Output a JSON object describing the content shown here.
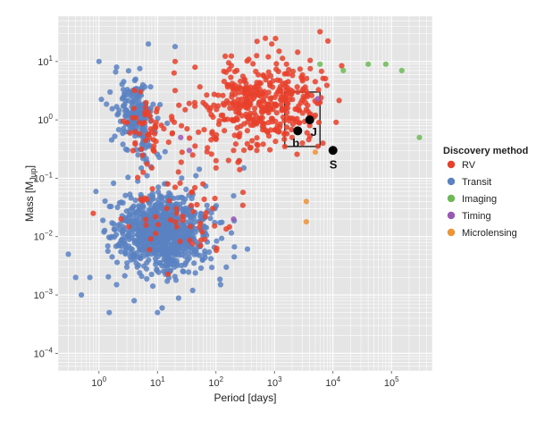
{
  "chart_data": {
    "type": "scatter",
    "xlabel": "Period [days]",
    "ylabel_main": "Mass [M",
    "ylabel_sub": "Jup",
    "ylabel_end": "]",
    "x_scale": "log",
    "y_scale": "log",
    "xlim": [
      0.2,
      500000
    ],
    "ylim": [
      5e-05,
      60
    ],
    "grid": true,
    "x_ticks": [
      {
        "value": 1,
        "base": "10",
        "exp": "0"
      },
      {
        "value": 10,
        "base": "10",
        "exp": "1"
      },
      {
        "value": 100,
        "base": "10",
        "exp": "2"
      },
      {
        "value": 1000,
        "base": "10",
        "exp": "3"
      },
      {
        "value": 10000,
        "base": "10",
        "exp": "4"
      },
      {
        "value": 100000,
        "base": "10",
        "exp": "5"
      }
    ],
    "y_ticks": [
      {
        "value": 0.0001,
        "base": "10",
        "exp": "−4"
      },
      {
        "value": 0.001,
        "base": "10",
        "exp": "−3"
      },
      {
        "value": 0.01,
        "base": "10",
        "exp": "−2"
      },
      {
        "value": 0.1,
        "base": "10",
        "exp": "−1"
      },
      {
        "value": 1,
        "base": "10",
        "exp": "0"
      },
      {
        "value": 10,
        "base": "10",
        "exp": "1"
      }
    ],
    "legend": {
      "title": "Discovery method",
      "placement": "right",
      "entries": [
        {
          "name": "RV",
          "color": "#e8412b"
        },
        {
          "name": "Transit",
          "color": "#5b82c2"
        },
        {
          "name": "Imaging",
          "color": "#6cba56"
        },
        {
          "name": "Timing",
          "color": "#9b59b6"
        },
        {
          "name": "Microlensing",
          "color": "#ef9337"
        }
      ]
    },
    "series": [
      {
        "name": "RV",
        "color": "#e8412b",
        "clusters": [
          {
            "cx": 700,
            "cy": 2.0,
            "sx": 0.45,
            "sy": 0.35,
            "n": 340,
            "seed": 11
          },
          {
            "cx": 150,
            "cy": 1.0,
            "sx": 0.45,
            "sy": 0.35,
            "n": 70,
            "seed": 12
          },
          {
            "cx": 6,
            "cy": 0.7,
            "sx": 0.25,
            "sy": 0.3,
            "n": 55,
            "seed": 13
          },
          {
            "cx": 30,
            "cy": 0.02,
            "sx": 0.45,
            "sy": 0.35,
            "n": 55,
            "seed": 14
          }
        ],
        "points": [
          {
            "x": 2500,
            "y": 3.0
          },
          {
            "x": 3500,
            "y": 1.5
          },
          {
            "x": 4000,
            "y": 0.8
          },
          {
            "x": 2000,
            "y": 0.5
          },
          {
            "x": 5000,
            "y": 1.2
          },
          {
            "x": 6000,
            "y": 2.0
          },
          {
            "x": 3000,
            "y": 5.0
          },
          {
            "x": 100,
            "y": 0.2
          },
          {
            "x": 200,
            "y": 0.3
          },
          {
            "x": 500,
            "y": 0.3
          },
          {
            "x": 1500,
            "y": 0.35
          },
          {
            "x": 3000,
            "y": 0.4
          },
          {
            "x": 15,
            "y": 0.08
          },
          {
            "x": 20,
            "y": 0.07
          },
          {
            "x": 0.8,
            "y": 0.025
          },
          {
            "x": 60,
            "y": 0.08
          },
          {
            "x": 20,
            "y": 10
          },
          {
            "x": 1200,
            "y": 15
          },
          {
            "x": 900,
            "y": 20
          },
          {
            "x": 700,
            "y": 25
          },
          {
            "x": 100,
            "y": 0.15
          },
          {
            "x": 250,
            "y": 0.2
          },
          {
            "x": 40,
            "y": 0.25
          },
          {
            "x": 8,
            "y": 0.15
          }
        ]
      },
      {
        "name": "Transit",
        "color": "#5b82c2",
        "clusters": [
          {
            "cx": 12,
            "cy": 0.012,
            "sx": 0.4,
            "sy": 0.33,
            "n": 900,
            "seed": 21
          },
          {
            "cx": 4,
            "cy": 1.5,
            "sx": 0.18,
            "sy": 0.25,
            "n": 170,
            "seed": 22
          },
          {
            "cx": 5,
            "cy": 0.3,
            "sx": 0.15,
            "sy": 0.2,
            "n": 25,
            "seed": 23
          }
        ],
        "points": [
          {
            "x": 1,
            "y": 10
          },
          {
            "x": 2,
            "y": 8
          },
          {
            "x": 7,
            "y": 20
          },
          {
            "x": 20,
            "y": 18
          },
          {
            "x": 0.3,
            "y": 0.005
          },
          {
            "x": 0.5,
            "y": 0.001
          },
          {
            "x": 1.5,
            "y": 0.0005
          },
          {
            "x": 0.7,
            "y": 0.002
          },
          {
            "x": 10,
            "y": 0.0005
          },
          {
            "x": 4,
            "y": 0.0008
          },
          {
            "x": 2,
            "y": 0.0015
          },
          {
            "x": 40,
            "y": 0.0012
          },
          {
            "x": 120,
            "y": 0.0015
          },
          {
            "x": 150,
            "y": 0.003
          },
          {
            "x": 200,
            "y": 0.05
          },
          {
            "x": 300,
            "y": 0.15
          },
          {
            "x": 250,
            "y": 0.2
          },
          {
            "x": 0.4,
            "y": 0.002
          },
          {
            "x": 12,
            "y": 0.0006
          },
          {
            "x": 3,
            "y": 0.003
          }
        ]
      },
      {
        "name": "Imaging",
        "color": "#6cba56",
        "points": [
          {
            "x": 6000,
            "y": 9
          },
          {
            "x": 15000,
            "y": 7
          },
          {
            "x": 40000,
            "y": 9
          },
          {
            "x": 80000,
            "y": 9
          },
          {
            "x": 150000,
            "y": 7
          },
          {
            "x": 300000,
            "y": 0.5
          }
        ]
      },
      {
        "name": "Timing",
        "color": "#9b59b6",
        "points": [
          {
            "x": 5500,
            "y": 2.3
          },
          {
            "x": 200,
            "y": 0.02
          },
          {
            "x": 35,
            "y": 0.3
          },
          {
            "x": 25,
            "y": 0.5
          }
        ]
      },
      {
        "name": "Microlensing",
        "color": "#ef9337",
        "points": [
          {
            "x": 3500,
            "y": 0.04
          },
          {
            "x": 3500,
            "y": 0.018
          },
          {
            "x": 5000,
            "y": 0.28
          }
        ]
      }
    ],
    "annotations": {
      "box": {
        "x0": 1500,
        "x1": 6000,
        "y0": 0.35,
        "y1": 3.0
      },
      "planets": [
        {
          "x": 2500,
          "y": 0.65,
          "label": "b",
          "label_dx": -6,
          "label_dy": 18
        },
        {
          "x": 4000,
          "y": 1.0,
          "label": "J",
          "label_dx": 1,
          "label_dy": 18
        },
        {
          "x": 10000,
          "y": 0.3,
          "label": "S",
          "label_dx": -4,
          "label_dy": 20
        }
      ]
    }
  }
}
